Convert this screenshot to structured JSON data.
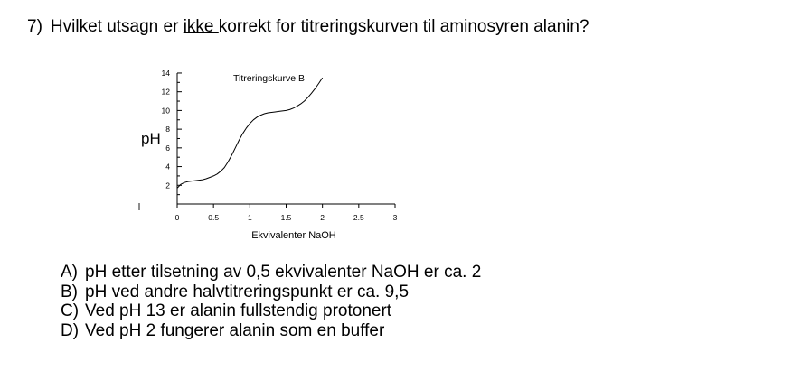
{
  "question": {
    "number": "7)",
    "text_before": "Hvilket utsagn er ",
    "text_underlined": "ikke ",
    "text_after": "korrekt for titreringskurven til aminosyren alanin?"
  },
  "chart_data": {
    "type": "line",
    "title": "Titreringskurve B",
    "xlabel": "Ekvivalenter NaOH",
    "ylabel": "pH",
    "xlim": [
      0,
      3
    ],
    "ylim": [
      0,
      14
    ],
    "x_ticks": [
      0,
      0.5,
      1,
      1.5,
      2,
      2.5,
      3
    ],
    "x_tick_labels": [
      "0",
      "0.5",
      "1",
      "1.5",
      "2",
      "2.5",
      "3"
    ],
    "y_ticks": [
      2,
      4,
      6,
      8,
      10,
      12,
      14
    ],
    "y_tick_labels": [
      "2",
      "4",
      "6",
      "8",
      "10",
      "12",
      "14"
    ],
    "grid": false,
    "series": [
      {
        "x": [
          0,
          0.05,
          0.1,
          0.15,
          0.2,
          0.25,
          0.3,
          0.35,
          0.4,
          0.45,
          0.5,
          0.55,
          0.6,
          0.65,
          0.7,
          0.75,
          0.8,
          0.85,
          0.9,
          0.95,
          1.0,
          1.05,
          1.1,
          1.15,
          1.2,
          1.25,
          1.3,
          1.35,
          1.4,
          1.45,
          1.5,
          1.55,
          1.6,
          1.65,
          1.7,
          1.75,
          1.8,
          1.85,
          1.9,
          1.95,
          2.0
        ],
        "y": [
          1.7,
          2.1,
          2.3,
          2.4,
          2.45,
          2.5,
          2.55,
          2.6,
          2.7,
          2.85,
          3.0,
          3.2,
          3.5,
          3.9,
          4.5,
          5.2,
          6.0,
          6.8,
          7.5,
          8.1,
          8.6,
          9.0,
          9.3,
          9.5,
          9.65,
          9.75,
          9.8,
          9.85,
          9.9,
          9.95,
          10.0,
          10.1,
          10.25,
          10.45,
          10.7,
          11.0,
          11.4,
          11.85,
          12.35,
          12.9,
          13.5
        ]
      }
    ]
  },
  "options": [
    {
      "letter": "A)",
      "text": "pH etter tilsetning av 0,5 ekvivalenter NaOH er ca. 2"
    },
    {
      "letter": "B)",
      "text": "pH ved andre halvtitreringspunkt er ca. 9,5"
    },
    {
      "letter": "C)",
      "text": "Ved pH 13 er alanin fullstendig protonert"
    },
    {
      "letter": "D)",
      "text": "Ved pH 2 fungerer alanin som en buffer"
    }
  ]
}
